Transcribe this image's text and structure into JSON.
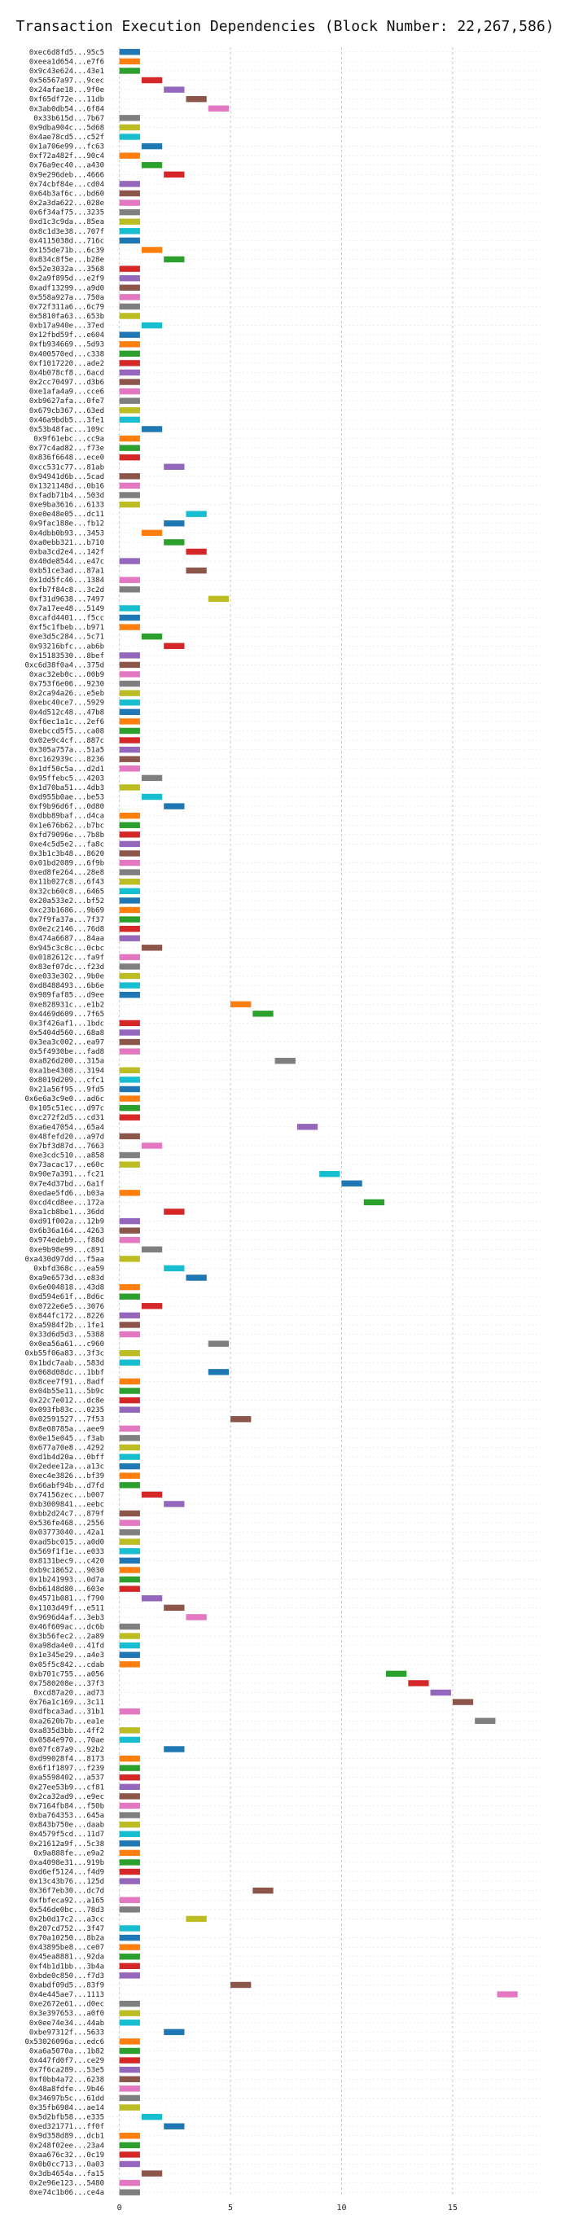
{
  "chart_data": {
    "type": "bar",
    "orientation": "horizontal",
    "subtype": "gantt",
    "title": "Transaction Execution Dependencies (Block Number: 22,267,586)",
    "xlabel": "",
    "ylabel": "",
    "xlim": [
      -0.5,
      19
    ],
    "xticks": [
      0,
      5,
      10,
      15
    ],
    "grid": true,
    "legend": "none",
    "colors": [
      "#1f77b4",
      "#ff7f0e",
      "#2ca02c",
      "#d62728",
      "#9467bd",
      "#8c564b",
      "#e377c2",
      "#7f7f7f",
      "#bcbd22",
      "#17becf"
    ],
    "transactions": [
      [
        "0xec6d8fd5...95c5",
        0
      ],
      [
        "0xeea1d654...e7f6",
        0
      ],
      [
        "0x9c43e624...43e1",
        0
      ],
      [
        "0x56567a97...9cec",
        1
      ],
      [
        "0x24afae18...9f0e",
        2
      ],
      [
        "0xf65df72e...11db",
        3
      ],
      [
        "0x3ab0db54...6f84",
        4
      ],
      [
        "0x33b615d...7b67",
        0
      ],
      [
        "0x9dba904c...5d68",
        0
      ],
      [
        "0x4ae78cd5...c52f",
        0
      ],
      [
        "0x1a706e99...fc63",
        1
      ],
      [
        "0xf72a482f...90c4",
        0
      ],
      [
        "0x76a9ec40...a430",
        1
      ],
      [
        "0x9e296deb...4666",
        2
      ],
      [
        "0x74cbf84e...cd04",
        0
      ],
      [
        "0x64b3af6c...bd60",
        0
      ],
      [
        "0x2a3da622...028e",
        0
      ],
      [
        "0x6f34af75...3235",
        0
      ],
      [
        "0xd1c3c9da...85ea",
        0
      ],
      [
        "0x8c1d3e38...707f",
        0
      ],
      [
        "0x4115038d...716c",
        0
      ],
      [
        "0x155de71b...6c39",
        1
      ],
      [
        "0x834c8f5e...b28e",
        2
      ],
      [
        "0x52e3032a...3568",
        0
      ],
      [
        "0x2a9f895d...e2f9",
        0
      ],
      [
        "0xadf13299...a9d0",
        0
      ],
      [
        "0x558a927a...750a",
        0
      ],
      [
        "0x72f311a6...6c79",
        0
      ],
      [
        "0x5810fa63...653b",
        0
      ],
      [
        "0xb17a940e...37ed",
        1
      ],
      [
        "0x12fbd59f...e604",
        0
      ],
      [
        "0xfb934669...5d93",
        0
      ],
      [
        "0x400570ed...c338",
        0
      ],
      [
        "0xf1017220...ade2",
        0
      ],
      [
        "0x4b078cf8...6acd",
        0
      ],
      [
        "0x2cc70497...d3b6",
        0
      ],
      [
        "0xe1afa4a9...cce6",
        0
      ],
      [
        "0xb9627afa...0fe7",
        0
      ],
      [
        "0x679cb367...63ed",
        0
      ],
      [
        "0x46a9bdb5...3fe1",
        0
      ],
      [
        "0x53b48fac...109c",
        1
      ],
      [
        "0x9f61ebc...cc9a",
        0
      ],
      [
        "0x77c4ad82...f73e",
        0
      ],
      [
        "0x836f6648...ece0",
        0
      ],
      [
        "0xcc531c77...81ab",
        2
      ],
      [
        "0x94941d6b...5cad",
        0
      ],
      [
        "0x1321148d...0b16",
        0
      ],
      [
        "0xfadb71b4...503d",
        0
      ],
      [
        "0xe9ba3616...6133",
        0
      ],
      [
        "0xe0e48e05...dc11",
        3
      ],
      [
        "0x9fac188e...fb12",
        2
      ],
      [
        "0x4dbb0b93...3453",
        1
      ],
      [
        "0xa0ebb321...b710",
        2
      ],
      [
        "0xba3cd2e4...142f",
        3
      ],
      [
        "0x40de8544...e47c",
        0
      ],
      [
        "0xb51ce3ad...87a1",
        3
      ],
      [
        "0x1dd5fc46...1384",
        0
      ],
      [
        "0xfb7f84c8...3c2d",
        0
      ],
      [
        "0xf31d9638...7497",
        4
      ],
      [
        "0x7a17ee48...5149",
        0
      ],
      [
        "0xcafd4401...f5cc",
        0
      ],
      [
        "0xf5c1fbeb...b971",
        0
      ],
      [
        "0xe3d5c284...5c71",
        1
      ],
      [
        "0x93216bfc...ab6b",
        2
      ],
      [
        "0x15183530...8bef",
        0
      ],
      [
        "0xc6d38f0a4...375d",
        0
      ],
      [
        "0xac32eb0c...00b9",
        0
      ],
      [
        "0x753f6e06...9230",
        0
      ],
      [
        "0x2ca94a26...e5eb",
        0
      ],
      [
        "0xebc40ce7...5929",
        0
      ],
      [
        "0x4d512c48...47b8",
        0
      ],
      [
        "0xf6ec1a1c...2ef6",
        0
      ],
      [
        "0xebccd5f5...ca08",
        0
      ],
      [
        "0x02e9c4cf...887c",
        0
      ],
      [
        "0x305a757a...51a5",
        0
      ],
      [
        "0xc162939c...8236",
        0
      ],
      [
        "0x1df50c5a...d2d1",
        0
      ],
      [
        "0x95ffebc5...4203",
        1
      ],
      [
        "0x1d70ba51...4db3",
        0
      ],
      [
        "0xd955b0ae...be53",
        1
      ],
      [
        "0xf9b96d6f...0d80",
        2
      ],
      [
        "0xdbb89baf...d4ca",
        0
      ],
      [
        "0x1e676b62...b7bc",
        0
      ],
      [
        "0xfd79096e...7b8b",
        0
      ],
      [
        "0xe4c5d5e2...fa8c",
        0
      ],
      [
        "0x3b1c3b48...8620",
        0
      ],
      [
        "0x01bd2089...6f9b",
        0
      ],
      [
        "0xed8fe264...28e8",
        0
      ],
      [
        "0x11b027c8...6f43",
        0
      ],
      [
        "0x32cb60c8...6465",
        0
      ],
      [
        "0x20a533e2...bf52",
        0
      ],
      [
        "0xc23b1686...9b69",
        0
      ],
      [
        "0x7f9fa37a...7f37",
        0
      ],
      [
        "0x0e2c2146...76d8",
        0
      ],
      [
        "0x474a6687...84aa",
        0
      ],
      [
        "0x945c3c8c...0cbc",
        1
      ],
      [
        "0x0182612c...fa9f",
        0
      ],
      [
        "0x83ef07dc...f23d",
        0
      ],
      [
        "0xe033e302...9b0e",
        0
      ],
      [
        "0xd8488493...6b6e",
        0
      ],
      [
        "0x989faf85...d9ee",
        0
      ],
      [
        "0xe828931c...e1b2",
        5
      ],
      [
        "0x4469d609...7f65",
        6
      ],
      [
        "0x3f426af1...1bdc",
        0
      ],
      [
        "0x5404d560...68a8",
        0
      ],
      [
        "0x3ea3c002...ea97",
        0
      ],
      [
        "0x5f4930be...fad8",
        0
      ],
      [
        "0xa826d200...315a",
        7
      ],
      [
        "0xa1be4308...3194",
        0
      ],
      [
        "0x8019d209...cfc1",
        0
      ],
      [
        "0x21a56f95...9fd5",
        0
      ],
      [
        "0x6e6a3c9e0...ad6c",
        0
      ],
      [
        "0x105c51ec...d97c",
        0
      ],
      [
        "0xc272f2d5...cd31",
        0
      ],
      [
        "0xa6e47054...65a4",
        8
      ],
      [
        "0x48fefd20...a97d",
        0
      ],
      [
        "0x7bf3d87d...7663",
        1
      ],
      [
        "0xe3cdc510...a858",
        0
      ],
      [
        "0x73acac17...e60c",
        0
      ],
      [
        "0x90e7a391...fc21",
        9
      ],
      [
        "0x7e4d37bd...6a1f",
        10
      ],
      [
        "0xedae5fd6...b03a",
        0
      ],
      [
        "0xcd4cd8ee...172a",
        11
      ],
      [
        "0xa1cb8be1...36dd",
        2
      ],
      [
        "0xd91f002a...12b9",
        0
      ],
      [
        "0x6b36a164...4263",
        0
      ],
      [
        "0x974edeb9...f88d",
        0
      ],
      [
        "0xe9b98e99...c891",
        1
      ],
      [
        "0xa430d97dd...f5aa",
        0
      ],
      [
        "0xbfd368c...ea59",
        2
      ],
      [
        "0xa9e6573d...e83d",
        3
      ],
      [
        "0x6e004818...43d8",
        0
      ],
      [
        "0xd594e61f...8d6c",
        0
      ],
      [
        "0x0722e6e5...3076",
        1
      ],
      [
        "0x844fc172...8226",
        0
      ],
      [
        "0xa5984f2b...1fe1",
        0
      ],
      [
        "0x33d6d5d3...5388",
        0
      ],
      [
        "0x0ea56a61...c960",
        4
      ],
      [
        "0xb55f06a83...3f3c",
        0
      ],
      [
        "0x1bdc7aab...583d",
        0
      ],
      [
        "0x068d08dc...1bbf",
        4
      ],
      [
        "0x8cee7f91...8adf",
        0
      ],
      [
        "0x04b55e11...5b9c",
        0
      ],
      [
        "0x22c7e012...dc8e",
        0
      ],
      [
        "0x093fb83c...0235",
        0
      ],
      [
        "0x02591527...7f53",
        5
      ],
      [
        "0x8e08785a...aee9",
        0
      ],
      [
        "0x0e15e045...f3ab",
        0
      ],
      [
        "0x677a70e8...4292",
        0
      ],
      [
        "0xd1b4d20a...0bff",
        0
      ],
      [
        "0x2edee12a...a13c",
        0
      ],
      [
        "0xec4e3826...bf39",
        0
      ],
      [
        "0x66abf94b...d7fd",
        0
      ],
      [
        "0x74156zec...b007",
        1
      ],
      [
        "0xb3009841...eebc",
        2
      ],
      [
        "0xbb2d24c7...879f",
        0
      ],
      [
        "0x536fe468...2556",
        0
      ],
      [
        "0x03773040...42a1",
        0
      ],
      [
        "0xad5bc015...a0d0",
        0
      ],
      [
        "0x569f1f1e...e033",
        0
      ],
      [
        "0x8131bec9...c420",
        0
      ],
      [
        "0xb9c18652...9030",
        0
      ],
      [
        "0x1b241993...0d7a",
        0
      ],
      [
        "0xb6148d80...603e",
        0
      ],
      [
        "0x4571b081...f790",
        1
      ],
      [
        "0x1103d49f...e511",
        2
      ],
      [
        "0x9696d4af...3eb3",
        3
      ],
      [
        "0x46f609ac...dc6b",
        0
      ],
      [
        "0x3b56fec2...2a89",
        0
      ],
      [
        "0xa98da4e0...41fd",
        0
      ],
      [
        "0x1e345e29...a4e3",
        0
      ],
      [
        "0x05f5c842...cdab",
        0
      ],
      [
        "0xb701c755...a056",
        12
      ],
      [
        "0x7580208e...37f3",
        13
      ],
      [
        "0xcd87a20...ad73",
        14
      ],
      [
        "0x76a1c169...3c11",
        15
      ],
      [
        "0xdfbca3ad...31b1",
        0
      ],
      [
        "0xa2620b7b...ea1e",
        16
      ],
      [
        "0xa835d3bb...4ff2",
        0
      ],
      [
        "0x0584e970...70ae",
        0
      ],
      [
        "0x07fc87a9...92b2",
        2
      ],
      [
        "0xd99028f4...8173",
        0
      ],
      [
        "0x6f1f1897...f239",
        0
      ],
      [
        "0xa5598402...a537",
        0
      ],
      [
        "0x27ee53b9...cf81",
        0
      ],
      [
        "0x2ca32ad9...e9ec",
        0
      ],
      [
        "0x7164fb84...f50b",
        0
      ],
      [
        "0xba764353...645a",
        0
      ],
      [
        "0x843b750e...daab",
        0
      ],
      [
        "0x4579f5cd...11d7",
        0
      ],
      [
        "0x21612a9f...5c38",
        0
      ],
      [
        "0x9a888fe...e9a2",
        0
      ],
      [
        "0xa4098e31...919b",
        0
      ],
      [
        "0xd6ef5124...f4d9",
        0
      ],
      [
        "0x13c43b76...125d",
        0
      ],
      [
        "0x36f7eb30...dc7d",
        6
      ],
      [
        "0xfbfeca92...a165",
        0
      ],
      [
        "0x546de0bc...78d3",
        0
      ],
      [
        "0x2b0d17c2...a3cc",
        3
      ],
      [
        "0x207cd752...3f47",
        0
      ],
      [
        "0x70a10250...8b2a",
        0
      ],
      [
        "0x43895be8...ce07",
        0
      ],
      [
        "0x45ea8881...92da",
        0
      ],
      [
        "0xf4b1d1bb...3b4a",
        0
      ],
      [
        "0xbde0c850...f7d3",
        0
      ],
      [
        "0xabdf09d5...83f9",
        5
      ],
      [
        "0x4e445ae7...1113",
        17
      ],
      [
        "0xe2672e61...d0ec",
        0
      ],
      [
        "0x3e397653...a0f0",
        0
      ],
      [
        "0x0ee74e34...44ab",
        0
      ],
      [
        "0xbe97312f...5633",
        2
      ],
      [
        "0x53026096a...edc6",
        0
      ],
      [
        "0xa6a5070a...1b82",
        0
      ],
      [
        "0x447fd0f7...ce29",
        0
      ],
      [
        "0x7f6ca289...53e5",
        0
      ],
      [
        "0xf0bb4a72...6238",
        0
      ],
      [
        "0x48a8fdfe...9b46",
        0
      ],
      [
        "0x34697b5c...61dd",
        0
      ],
      [
        "0x35fb6984...ae14",
        0
      ],
      [
        "0x5d2bfb58...e335",
        1
      ],
      [
        "0xed321771...ff0f",
        2
      ],
      [
        "0x9d358d89...dcb1",
        0
      ],
      [
        "0x248f02ee...23a4",
        0
      ],
      [
        "0xaa676c32...0c19",
        0
      ],
      [
        "0x0b0cc713...0a03",
        0
      ],
      [
        "0x3db4654a...fa15",
        1
      ],
      [
        "0x2e96e123...5480",
        0
      ],
      [
        "0xe74c1b06...ce4a",
        0
      ]
    ]
  }
}
